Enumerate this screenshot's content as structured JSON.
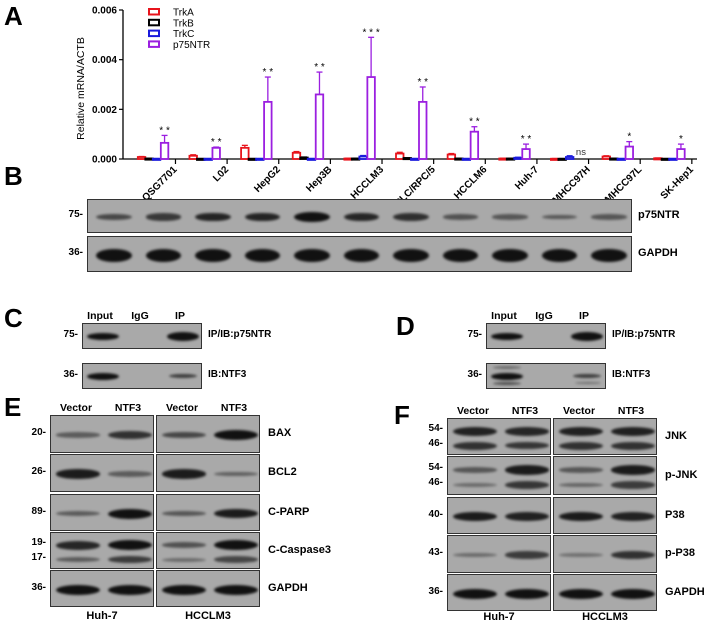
{
  "panels": {
    "A": "A",
    "B": "B",
    "C": "C",
    "D": "D",
    "E": "E",
    "F": "F"
  },
  "chart_data": {
    "type": "bar",
    "title": "",
    "xlabel": "",
    "ylabel": "Relative mRNA/ACTB",
    "ylim": [
      0,
      0.006
    ],
    "yticks": [
      "0.000",
      "0.002",
      "0.004",
      "0.006"
    ],
    "grid": false,
    "legend_position": "top-left",
    "categories": [
      "QSG7701",
      "L02",
      "HepG2",
      "Hep3B",
      "HCCLM3",
      "PLC/RPC/5",
      "HCCLM6",
      "Huh-7",
      "MHCC97H",
      "MHCC97L",
      "SK-Hep1"
    ],
    "series": [
      {
        "name": "TrkA",
        "color": "#e8141c",
        "values": [
          8e-05,
          0.00013,
          0.00045,
          0.00025,
          2e-05,
          0.00022,
          0.00018,
          2e-05,
          1e-05,
          0.0001,
          3e-05
        ],
        "errors": [
          2e-05,
          4e-05,
          0.0001,
          5e-05,
          1e-05,
          5e-05,
          4e-05,
          1e-05,
          1e-05,
          3e-05,
          1e-05
        ]
      },
      {
        "name": "TrkB",
        "color": "#000000",
        "values": [
          2e-05,
          1e-05,
          1e-05,
          6e-05,
          2e-05,
          4e-05,
          2e-05,
          2e-05,
          1e-05,
          2e-05,
          1e-05
        ],
        "errors": [
          1e-05,
          1e-05,
          1e-05,
          2e-05,
          1e-05,
          1e-05,
          1e-05,
          1e-05,
          1e-05,
          1e-05,
          1e-05
        ]
      },
      {
        "name": "TrkC",
        "color": "#1a1adc",
        "values": [
          1e-05,
          1e-05,
          1e-05,
          1e-05,
          0.0001,
          1e-05,
          1e-05,
          5e-05,
          8e-05,
          1e-05,
          1e-05
        ],
        "errors": [
          1e-05,
          1e-05,
          1e-05,
          1e-05,
          4e-05,
          1e-05,
          1e-05,
          2e-05,
          5e-05,
          1e-05,
          1e-05
        ]
      },
      {
        "name": "p75NTR",
        "color": "#9b1fe0",
        "values": [
          0.00065,
          0.00045,
          0.0023,
          0.0026,
          0.0033,
          0.0023,
          0.0011,
          0.0004,
          0.0,
          0.0005,
          0.0004
        ],
        "errors": [
          0.0003,
          3e-05,
          0.001,
          0.0009,
          0.0016,
          0.0006,
          0.0002,
          0.0002,
          0.0,
          0.0002,
          0.0002
        ]
      }
    ],
    "annotations": [
      "**",
      "**",
      "**",
      "**",
      "***",
      "**",
      "**",
      "**",
      "ns",
      "*",
      "*"
    ]
  },
  "panel_b": {
    "lanes": [
      "QSG7701",
      "L02",
      "HepG2",
      "Hep3B",
      "HCCLM3",
      "PLC/RPC/5",
      "HCCLM6",
      "Huh-7",
      "MHCC97H",
      "MHCC97L",
      "SK-Hep1"
    ],
    "rows": [
      {
        "label": "p75NTR",
        "mw": "75-",
        "intensity": [
          0.45,
          0.6,
          0.8,
          0.8,
          1.0,
          0.78,
          0.7,
          0.35,
          0.3,
          0.28,
          0.3
        ]
      },
      {
        "label": "GAPDH",
        "mw": "36-",
        "intensity": [
          1,
          1,
          1,
          1,
          1,
          1,
          1,
          1,
          1,
          1,
          1
        ]
      }
    ]
  },
  "panel_c": {
    "lanes": [
      "Input",
      "IgG",
      "IP"
    ],
    "rows": [
      {
        "label": "IP/IB:p75NTR",
        "mw": "75-"
      },
      {
        "label": "IB:NTF3",
        "mw": "36-"
      }
    ]
  },
  "panel_d": {
    "lanes": [
      "Input",
      "IgG",
      "IP"
    ],
    "rows": [
      {
        "label": "IP/IB:p75NTR",
        "mw": "75-"
      },
      {
        "label": "IB:NTF3",
        "mw": "36-"
      }
    ]
  },
  "panel_e": {
    "lanes": [
      "Vector",
      "NTF3",
      "Vector",
      "NTF3"
    ],
    "cell_lines": [
      "Huh-7",
      "HCCLM3"
    ],
    "rows": [
      {
        "label": "BAX",
        "mw": [
          "20-"
        ]
      },
      {
        "label": "BCL2",
        "mw": [
          "26-"
        ]
      },
      {
        "label": "C-PARP",
        "mw": [
          "89-"
        ]
      },
      {
        "label": "C-Caspase3",
        "mw": [
          "19-",
          "17-"
        ]
      },
      {
        "label": "GAPDH",
        "mw": [
          "36-"
        ]
      }
    ]
  },
  "panel_f": {
    "lanes": [
      "Vector",
      "NTF3",
      "Vector",
      "NTF3"
    ],
    "cell_lines": [
      "Huh-7",
      "HCCLM3"
    ],
    "rows": [
      {
        "label": "JNK",
        "mw": [
          "54-",
          "46-"
        ]
      },
      {
        "label": "p-JNK",
        "mw": [
          "54-",
          "46-"
        ]
      },
      {
        "label": "P38",
        "mw": [
          "40-"
        ]
      },
      {
        "label": "p-P38",
        "mw": [
          "43-"
        ]
      },
      {
        "label": "GAPDH",
        "mw": [
          "36-"
        ]
      }
    ]
  }
}
